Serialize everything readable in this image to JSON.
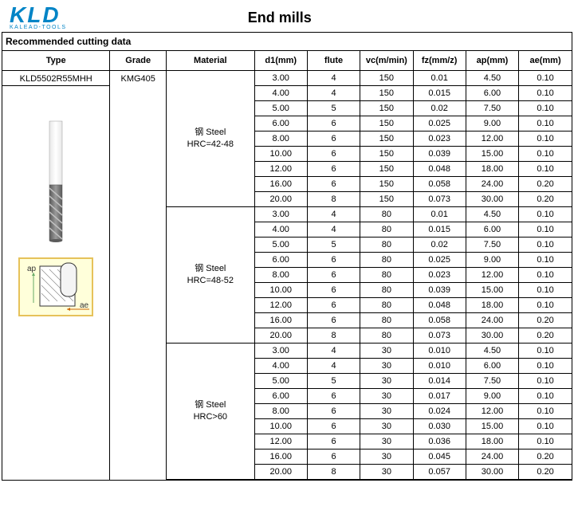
{
  "page_title": "End mills",
  "logo_main": "KLD",
  "logo_sub": "KALEAD-TOOLS",
  "section_title": "Recommended cutting data",
  "columns": [
    "Type",
    "Grade",
    "Material",
    "d1(mm)",
    "flute",
    "vc(m/min)",
    "fz(mm/z)",
    "ap(mm)",
    "ae(mm)"
  ],
  "type_code": "KLD5502R55MHH",
  "grade": "KMG405",
  "groups": [
    {
      "material_line1": "钢 Steel",
      "material_line2": "HRC=42-48",
      "rows": [
        [
          "3.00",
          "4",
          "150",
          "0.01",
          "4.50",
          "0.10"
        ],
        [
          "4.00",
          "4",
          "150",
          "0.015",
          "6.00",
          "0.10"
        ],
        [
          "5.00",
          "5",
          "150",
          "0.02",
          "7.50",
          "0.10"
        ],
        [
          "6.00",
          "6",
          "150",
          "0.025",
          "9.00",
          "0.10"
        ],
        [
          "8.00",
          "6",
          "150",
          "0.023",
          "12.00",
          "0.10"
        ],
        [
          "10.00",
          "6",
          "150",
          "0.039",
          "15.00",
          "0.10"
        ],
        [
          "12.00",
          "6",
          "150",
          "0.048",
          "18.00",
          "0.10"
        ],
        [
          "16.00",
          "6",
          "150",
          "0.058",
          "24.00",
          "0.20"
        ],
        [
          "20.00",
          "8",
          "150",
          "0.073",
          "30.00",
          "0.20"
        ]
      ]
    },
    {
      "material_line1": "钢 Steel",
      "material_line2": "HRC=48-52",
      "rows": [
        [
          "3.00",
          "4",
          "80",
          "0.01",
          "4.50",
          "0.10"
        ],
        [
          "4.00",
          "4",
          "80",
          "0.015",
          "6.00",
          "0.10"
        ],
        [
          "5.00",
          "5",
          "80",
          "0.02",
          "7.50",
          "0.10"
        ],
        [
          "6.00",
          "6",
          "80",
          "0.025",
          "9.00",
          "0.10"
        ],
        [
          "8.00",
          "6",
          "80",
          "0.023",
          "12.00",
          "0.10"
        ],
        [
          "10.00",
          "6",
          "80",
          "0.039",
          "15.00",
          "0.10"
        ],
        [
          "12.00",
          "6",
          "80",
          "0.048",
          "18.00",
          "0.10"
        ],
        [
          "16.00",
          "6",
          "80",
          "0.058",
          "24.00",
          "0.20"
        ],
        [
          "20.00",
          "8",
          "80",
          "0.073",
          "30.00",
          "0.20"
        ]
      ]
    },
    {
      "material_line1": "钢 Steel",
      "material_line2": "HRC>60",
      "rows": [
        [
          "3.00",
          "4",
          "30",
          "0.010",
          "4.50",
          "0.10"
        ],
        [
          "4.00",
          "4",
          "30",
          "0.010",
          "6.00",
          "0.10"
        ],
        [
          "5.00",
          "5",
          "30",
          "0.014",
          "7.50",
          "0.10"
        ],
        [
          "6.00",
          "6",
          "30",
          "0.017",
          "9.00",
          "0.10"
        ],
        [
          "8.00",
          "6",
          "30",
          "0.024",
          "12.00",
          "0.10"
        ],
        [
          "10.00",
          "6",
          "30",
          "0.030",
          "15.00",
          "0.10"
        ],
        [
          "12.00",
          "6",
          "30",
          "0.036",
          "18.00",
          "0.10"
        ],
        [
          "16.00",
          "6",
          "30",
          "0.045",
          "24.00",
          "0.20"
        ],
        [
          "20.00",
          "8",
          "30",
          "0.057",
          "30.00",
          "0.20"
        ]
      ]
    }
  ],
  "diagram_labels": {
    "ap": "ap",
    "ae": "ae"
  },
  "colors": {
    "brand": "#0084c6",
    "border": "#000000",
    "diag_bg": "#ffffda",
    "diag_border": "#e6c25a",
    "hatch": "#888888",
    "tool_light": "#e8e8e8",
    "tool_dark": "#5a5a5a"
  }
}
